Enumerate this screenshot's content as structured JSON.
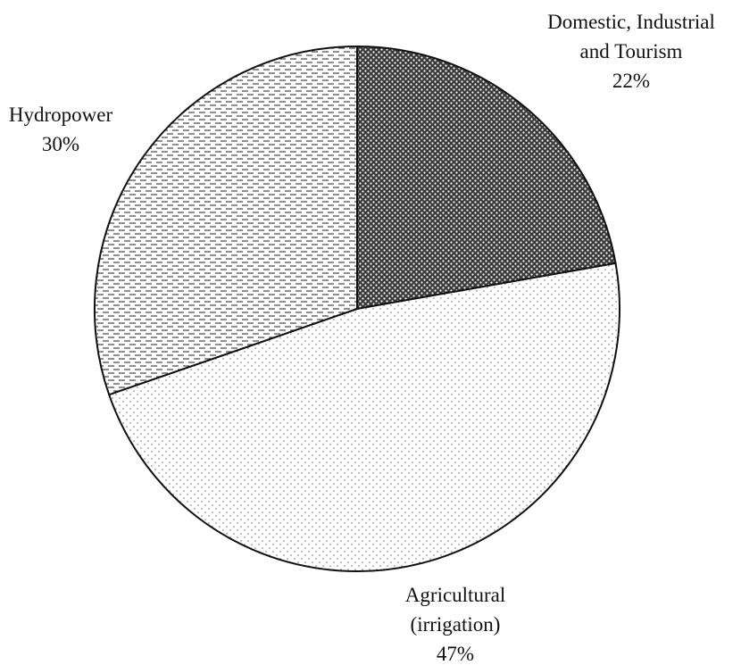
{
  "chart_data": {
    "type": "pie",
    "categories": [
      "Domestic, Industrial and Tourism",
      "Agricultural (irrigation)",
      "Hydropower"
    ],
    "values": [
      22,
      47,
      30
    ],
    "value_labels": [
      "22%",
      "47%",
      "30%"
    ]
  }
}
